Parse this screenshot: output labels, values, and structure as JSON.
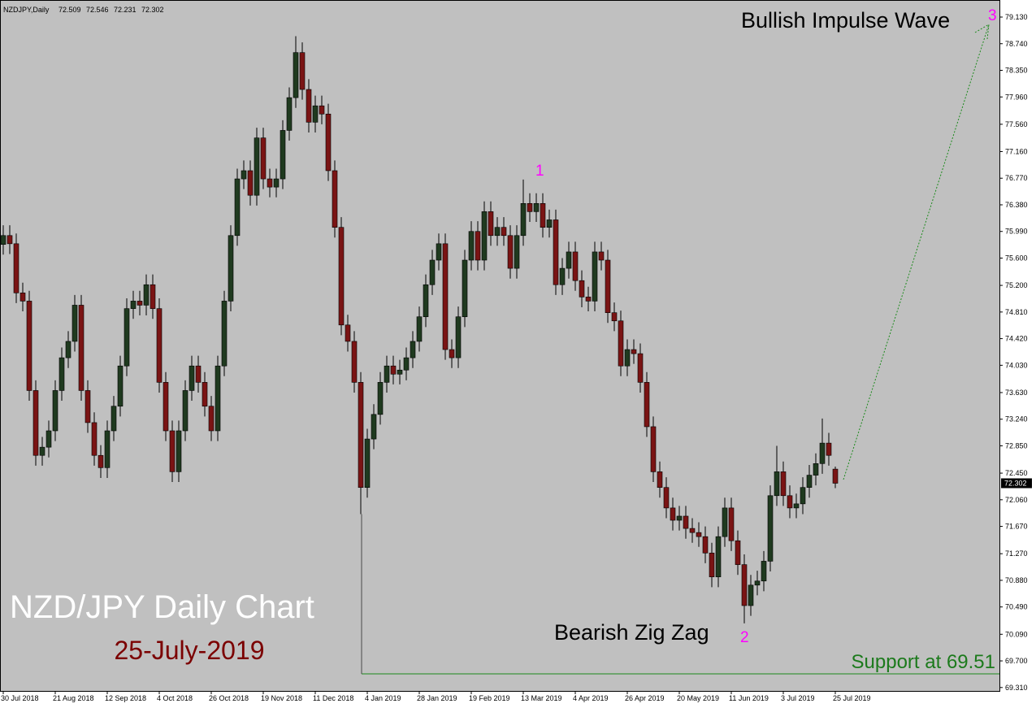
{
  "chart_data": {
    "type": "candlestick",
    "symbol": "NZDJPY,Daily",
    "title": "NZD/JPY Daily Chart",
    "subtitle": "25-July-2019",
    "annotations": {
      "wave_top": "Bullish Impulse Wave",
      "wave_bottom": "Bearish Zig Zag",
      "point_1": "1",
      "point_2": "2",
      "point_3": "3"
    },
    "support": 69.51,
    "support_label": "Support at 69.51",
    "bull_color": "#1f3a1f",
    "bear_color": "#7a1414",
    "ylim": [
      69.26,
      79.38
    ],
    "yticks": [
      {
        "value": 79.13,
        "label": "79.130"
      },
      {
        "value": 78.74,
        "label": "78.740"
      },
      {
        "value": 78.35,
        "label": "78.350"
      },
      {
        "value": 77.96,
        "label": "77.960"
      },
      {
        "value": 77.56,
        "label": "77.560"
      },
      {
        "value": 77.16,
        "label": "77.160"
      },
      {
        "value": 76.77,
        "label": "76.770"
      },
      {
        "value": 76.38,
        "label": "76.380"
      },
      {
        "value": 75.99,
        "label": "75.990"
      },
      {
        "value": 75.6,
        "label": "75.600"
      },
      {
        "value": 75.2,
        "label": "75.200"
      },
      {
        "value": 74.81,
        "label": "74.810"
      },
      {
        "value": 74.42,
        "label": "74.420"
      },
      {
        "value": 74.03,
        "label": "74.030"
      },
      {
        "value": 73.63,
        "label": "73.630"
      },
      {
        "value": 73.24,
        "label": "73.240"
      },
      {
        "value": 72.85,
        "label": "72.850"
      },
      {
        "value": 72.45,
        "label": "72.450"
      },
      {
        "value": 72.06,
        "label": "72.060"
      },
      {
        "value": 71.67,
        "label": "71.670"
      },
      {
        "value": 71.27,
        "label": "71.270"
      },
      {
        "value": 70.88,
        "label": "70.880"
      },
      {
        "value": 70.49,
        "label": "70.490"
      },
      {
        "value": 70.09,
        "label": "70.090"
      },
      {
        "value": 69.7,
        "label": "69.700"
      },
      {
        "value": 69.31,
        "label": "69.310"
      }
    ],
    "categories": [
      "30 Jul 2018",
      null,
      null,
      null,
      null,
      null,
      null,
      null,
      "21 Aug 2018",
      null,
      null,
      null,
      null,
      null,
      null,
      null,
      "12 Sep 2018",
      null,
      null,
      null,
      null,
      null,
      null,
      null,
      "4 Oct 2018",
      null,
      null,
      null,
      null,
      null,
      null,
      null,
      "26 Oct 2018",
      null,
      null,
      null,
      null,
      null,
      null,
      null,
      "19 Nov 2018",
      null,
      null,
      null,
      null,
      null,
      null,
      null,
      "11 Dec 2018",
      null,
      null,
      null,
      null,
      null,
      null,
      null,
      "4 Jan 2019",
      null,
      null,
      null,
      null,
      null,
      null,
      null,
      "28 Jan 2019",
      null,
      null,
      null,
      null,
      null,
      null,
      null,
      "19 Feb 2019",
      null,
      null,
      null,
      null,
      null,
      null,
      null,
      "13 Mar 2019",
      null,
      null,
      null,
      null,
      null,
      null,
      null,
      "4 Apr 2019",
      null,
      null,
      null,
      null,
      null,
      null,
      null,
      "26 Apr 2019",
      null,
      null,
      null,
      null,
      null,
      null,
      null,
      "20 May 2019",
      null,
      null,
      null,
      null,
      null,
      null,
      null,
      "11 Jun 2019",
      null,
      null,
      null,
      null,
      null,
      null,
      null,
      "3 Jul 2019",
      null,
      null,
      null,
      null,
      null,
      null,
      null,
      "25 Jul 2019"
    ],
    "open": [
      75.8,
      75.93,
      75.81,
      75.09,
      74.97,
      73.66,
      72.71,
      72.83,
      73.07,
      73.66,
      74.14,
      74.38,
      74.91,
      73.66,
      73.19,
      72.71,
      72.53,
      73.07,
      73.43,
      74.02,
      74.86,
      74.97,
      74.91,
      75.21,
      74.86,
      73.78,
      73.07,
      72.47,
      73.07,
      73.66,
      74.02,
      73.78,
      73.43,
      73.07,
      74.02,
      74.97,
      75.93,
      76.76,
      76.88,
      76.52,
      77.36,
      76.76,
      76.64,
      76.76,
      77.47,
      77.95,
      78.61,
      78.07,
      77.59,
      77.83,
      77.71,
      76.88,
      76.05,
      74.62,
      74.38,
      73.78,
      72.24,
      72.95,
      73.31,
      73.78,
      74.02,
      73.9,
      73.96,
      74.14,
      74.38,
      74.74,
      75.21,
      75.57,
      75.81,
      74.26,
      74.14,
      74.74,
      75.57,
      75.99,
      75.57,
      76.28,
      75.93,
      76.05,
      75.93,
      75.45,
      75.93,
      76.4,
      76.28,
      76.4,
      76.05,
      76.16,
      75.21,
      75.45,
      75.69,
      75.27,
      75.03,
      74.97,
      75.69,
      75.57,
      74.8,
      74.68,
      74.02,
      74.26,
      74.2,
      73.78,
      73.13,
      72.47,
      72.24,
      71.94,
      71.76,
      71.82,
      71.64,
      71.58,
      71.52,
      71.28,
      70.93,
      71.52,
      71.94,
      71.46,
      71.11,
      70.51,
      70.81,
      70.87,
      71.16,
      72.12,
      72.47,
      72.12,
      71.94,
      72.0,
      72.24,
      72.42,
      72.59,
      72.89,
      72.509
    ],
    "high": [
      76.08,
      76.08,
      75.96,
      75.24,
      75.12,
      73.81,
      72.98,
      73.22,
      73.81,
      74.29,
      74.53,
      75.06,
      75.06,
      73.81,
      73.34,
      72.86,
      73.22,
      73.58,
      74.17,
      75.01,
      75.12,
      75.12,
      75.36,
      75.36,
      75.01,
      73.93,
      73.22,
      73.22,
      73.81,
      74.17,
      74.17,
      73.93,
      73.58,
      74.17,
      75.12,
      76.08,
      76.91,
      77.03,
      77.03,
      77.51,
      77.51,
      76.91,
      76.91,
      77.62,
      78.1,
      78.85,
      78.76,
      78.22,
      77.98,
      77.98,
      77.86,
      77.03,
      76.2,
      74.77,
      74.53,
      73.93,
      73.1,
      73.46,
      73.93,
      74.17,
      74.17,
      74.11,
      74.29,
      74.53,
      74.89,
      75.36,
      75.72,
      75.96,
      75.96,
      74.41,
      74.89,
      75.72,
      76.14,
      76.14,
      76.43,
      76.43,
      76.2,
      76.2,
      76.08,
      76.08,
      76.75,
      76.55,
      76.55,
      76.55,
      76.31,
      76.31,
      75.6,
      75.84,
      75.84,
      75.42,
      75.18,
      75.84,
      75.84,
      75.72,
      74.95,
      74.83,
      74.41,
      74.41,
      74.35,
      73.93,
      73.28,
      72.62,
      72.39,
      72.09,
      71.97,
      71.97,
      71.79,
      71.73,
      71.67,
      71.43,
      71.67,
      72.09,
      72.09,
      71.61,
      71.26,
      70.96,
      71.02,
      71.31,
      72.27,
      72.85,
      72.62,
      72.27,
      72.15,
      72.39,
      72.57,
      72.74,
      73.25,
      73.04,
      72.546
    ],
    "low": [
      75.65,
      75.66,
      74.94,
      74.82,
      73.51,
      72.56,
      72.56,
      72.68,
      72.92,
      73.51,
      73.99,
      74.23,
      73.51,
      73.04,
      72.56,
      72.38,
      72.38,
      72.92,
      73.28,
      73.87,
      74.71,
      74.76,
      74.76,
      74.71,
      73.63,
      72.92,
      72.32,
      72.32,
      72.92,
      73.51,
      73.63,
      73.28,
      72.92,
      72.92,
      73.87,
      74.82,
      75.78,
      76.61,
      76.37,
      76.37,
      76.61,
      76.49,
      76.49,
      76.61,
      77.32,
      77.8,
      77.92,
      77.44,
      77.44,
      77.56,
      76.73,
      75.9,
      74.47,
      74.23,
      73.63,
      71.85,
      72.09,
      72.8,
      73.16,
      73.63,
      73.75,
      73.75,
      73.81,
      73.99,
      74.23,
      74.59,
      75.06,
      75.42,
      74.11,
      73.99,
      73.99,
      74.59,
      75.42,
      75.42,
      75.42,
      75.78,
      75.78,
      75.78,
      75.3,
      75.3,
      75.78,
      76.13,
      76.13,
      75.9,
      75.9,
      75.06,
      75.06,
      75.3,
      75.12,
      74.88,
      74.82,
      74.82,
      75.42,
      74.65,
      74.53,
      73.87,
      73.87,
      74.05,
      73.63,
      72.98,
      72.32,
      72.09,
      71.79,
      71.61,
      71.61,
      71.49,
      71.43,
      71.37,
      71.13,
      70.78,
      70.78,
      71.37,
      71.31,
      70.96,
      70.25,
      70.36,
      70.66,
      70.72,
      71.01,
      71.97,
      71.97,
      71.79,
      71.79,
      71.85,
      72.09,
      72.27,
      72.44,
      72.56,
      72.231
    ],
    "close": [
      75.93,
      75.81,
      75.09,
      74.97,
      73.66,
      72.71,
      72.83,
      73.07,
      73.66,
      74.14,
      74.38,
      74.91,
      73.66,
      73.19,
      72.71,
      72.53,
      73.07,
      73.43,
      74.02,
      74.86,
      74.97,
      74.91,
      75.21,
      74.86,
      73.78,
      73.07,
      72.47,
      73.07,
      73.66,
      74.02,
      73.78,
      73.43,
      73.07,
      74.02,
      74.97,
      75.93,
      76.76,
      76.88,
      76.52,
      77.36,
      76.76,
      76.64,
      76.76,
      77.47,
      77.95,
      78.61,
      78.07,
      77.59,
      77.83,
      77.71,
      76.88,
      76.05,
      74.62,
      74.38,
      73.78,
      72.24,
      72.95,
      73.31,
      73.78,
      74.02,
      73.9,
      73.96,
      74.14,
      74.38,
      74.74,
      75.21,
      75.57,
      75.81,
      74.26,
      74.14,
      74.74,
      75.57,
      75.99,
      75.57,
      76.28,
      75.93,
      76.05,
      75.93,
      75.45,
      75.93,
      76.4,
      76.28,
      76.4,
      76.05,
      76.16,
      75.21,
      75.45,
      75.69,
      75.27,
      75.03,
      74.97,
      75.69,
      75.57,
      74.8,
      74.68,
      74.02,
      74.26,
      74.2,
      73.78,
      73.13,
      72.47,
      72.24,
      71.94,
      71.76,
      71.82,
      71.64,
      71.58,
      71.52,
      71.28,
      70.93,
      71.52,
      71.94,
      71.46,
      71.11,
      70.51,
      70.81,
      70.87,
      71.16,
      72.12,
      72.47,
      72.12,
      71.94,
      72.0,
      72.24,
      72.42,
      72.59,
      72.89,
      72.71,
      72.302
    ]
  }
}
